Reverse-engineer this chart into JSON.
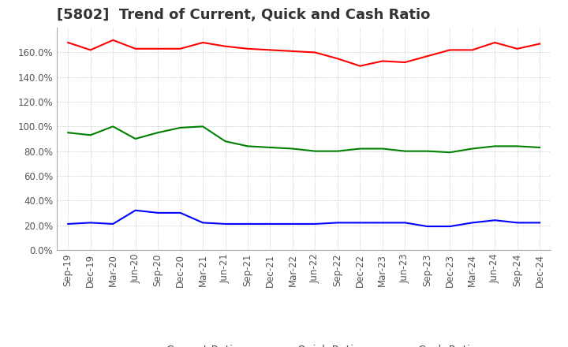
{
  "title": "[5802]  Trend of Current, Quick and Cash Ratio",
  "x_labels": [
    "Sep-19",
    "Dec-19",
    "Mar-20",
    "Jun-20",
    "Sep-20",
    "Dec-20",
    "Mar-21",
    "Jun-21",
    "Sep-21",
    "Dec-21",
    "Mar-22",
    "Jun-22",
    "Sep-22",
    "Dec-22",
    "Mar-23",
    "Jun-23",
    "Sep-23",
    "Dec-23",
    "Mar-24",
    "Jun-24",
    "Sep-24",
    "Dec-24"
  ],
  "current_ratio": [
    168,
    162,
    170,
    163,
    163,
    163,
    168,
    165,
    163,
    162,
    161,
    160,
    155,
    149,
    153,
    152,
    157,
    162,
    162,
    168,
    163,
    167
  ],
  "quick_ratio": [
    95,
    93,
    100,
    90,
    95,
    99,
    100,
    88,
    84,
    83,
    82,
    80,
    80,
    82,
    82,
    80,
    80,
    79,
    82,
    84,
    84,
    83
  ],
  "cash_ratio": [
    21,
    22,
    21,
    32,
    30,
    30,
    22,
    21,
    21,
    21,
    21,
    21,
    22,
    22,
    22,
    22,
    19,
    19,
    22,
    24,
    22,
    22
  ],
  "current_color": "#ff0000",
  "quick_color": "#008000",
  "cash_color": "#0000ff",
  "ylim": [
    0,
    180
  ],
  "yticks": [
    0,
    20,
    40,
    60,
    80,
    100,
    120,
    140,
    160
  ],
  "background_color": "#ffffff",
  "title_fontsize": 13,
  "legend_fontsize": 10,
  "tick_fontsize": 8.5
}
